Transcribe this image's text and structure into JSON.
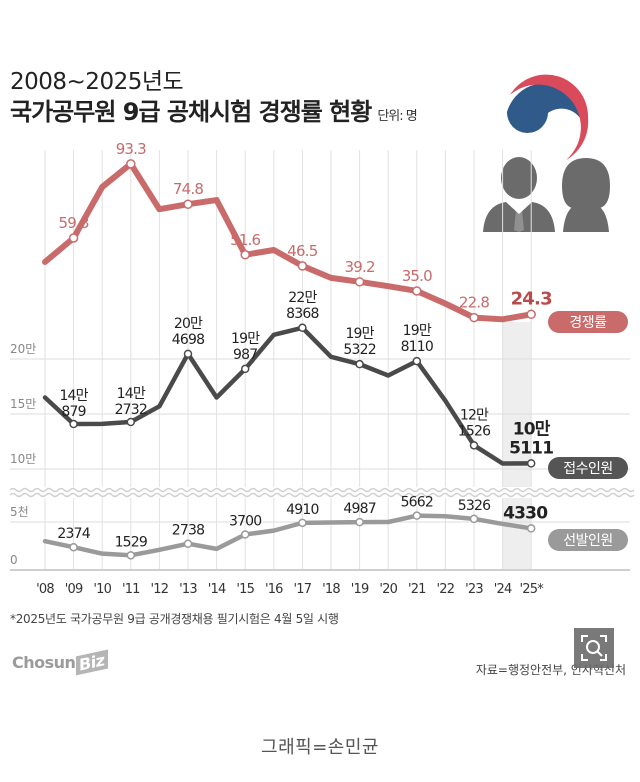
{
  "header": {
    "title_line1": "2008~2025년도",
    "title_line2": "국가공무원 9급 공채시험 경쟁률 현황",
    "unit": "단위: 명"
  },
  "footnote": "*2025년도 국가공무원 9급 공개경쟁채용 필기시험은 4월 5일 시행",
  "logo": {
    "main": "Chosun",
    "sub": "Biz"
  },
  "source": "자료=행정안전부, 인사혁신처",
  "credit": "그래픽=손민균",
  "icons": {
    "emblem": "government-emblem-icon",
    "people": "people-icon",
    "zoom": "zoom-search-icon"
  },
  "colors": {
    "competition": "#c96b6b",
    "applicants": "#4a4a4a",
    "selected": "#9a9a9a",
    "highlight": "#eeeeee",
    "emblem_blue": "#2f5a8a",
    "emblem_red": "#d94a5a"
  },
  "chart_data": {
    "type": "line",
    "categories": [
      "'08",
      "'09",
      "'10",
      "'11",
      "'12",
      "'13",
      "'14",
      "'15",
      "'16",
      "'17",
      "'18",
      "'19",
      "'20",
      "'21",
      "'22",
      "'23",
      "'24",
      "'25*"
    ],
    "highlight_category": "'25*",
    "y_axis": {
      "ticks": [
        {
          "label": "20만",
          "value": 200000
        },
        {
          "label": "15만",
          "value": 150000
        },
        {
          "label": "10만",
          "value": 100000
        },
        {
          "label": "5천",
          "value": 5000
        },
        {
          "label": "0",
          "value": 0
        }
      ],
      "axis_break": "between 10만 and 5천"
    },
    "grid": true,
    "series": [
      {
        "name": "경쟁률",
        "legend_label": "경쟁률",
        "values": [
          48.3,
          59.3,
          82.7,
          93.3,
          72.5,
          74.8,
          76.7,
          51.6,
          53.8,
          46.5,
          41.0,
          39.2,
          37.2,
          35.0,
          29.2,
          22.8,
          22.0,
          24.3
        ],
        "labels": [
          null,
          "59.3",
          null,
          "93.3",
          null,
          "74.8",
          null,
          "51.6",
          null,
          "46.5",
          null,
          "39.2",
          null,
          "35.0",
          null,
          "22.8",
          null,
          "24.3"
        ]
      },
      {
        "name": "접수인원",
        "legend_label": "접수인원",
        "values": [
          165000,
          140879,
          141000,
          142732,
          157000,
          204698,
          165000,
          190987,
          222000,
          228368,
          202000,
          195322,
          185000,
          198110,
          162000,
          121526,
          105000,
          105111
        ],
        "labels_top": [
          null,
          "14만",
          null,
          "14만",
          null,
          "20만",
          null,
          "19만",
          null,
          "22만",
          null,
          "19만",
          null,
          "19만",
          null,
          "12만",
          null,
          "10만"
        ],
        "labels_bottom": [
          null,
          "879",
          null,
          "2732",
          null,
          "4698",
          null,
          "987",
          null,
          "8368",
          null,
          "5322",
          null,
          "8110",
          null,
          "1526",
          null,
          "5111"
        ]
      },
      {
        "name": "선발인원",
        "legend_label": "선발인원",
        "values": [
          3000,
          2374,
          1700,
          1529,
          2100,
          2738,
          2200,
          3700,
          4100,
          4910,
          4950,
          4987,
          5000,
          5662,
          5600,
          5326,
          4800,
          4330
        ],
        "labels": [
          null,
          "2374",
          null,
          "1529",
          null,
          "2738",
          null,
          "3700",
          null,
          "4910",
          null,
          "4987",
          null,
          "5662",
          null,
          "5326",
          null,
          "4330"
        ]
      }
    ]
  }
}
